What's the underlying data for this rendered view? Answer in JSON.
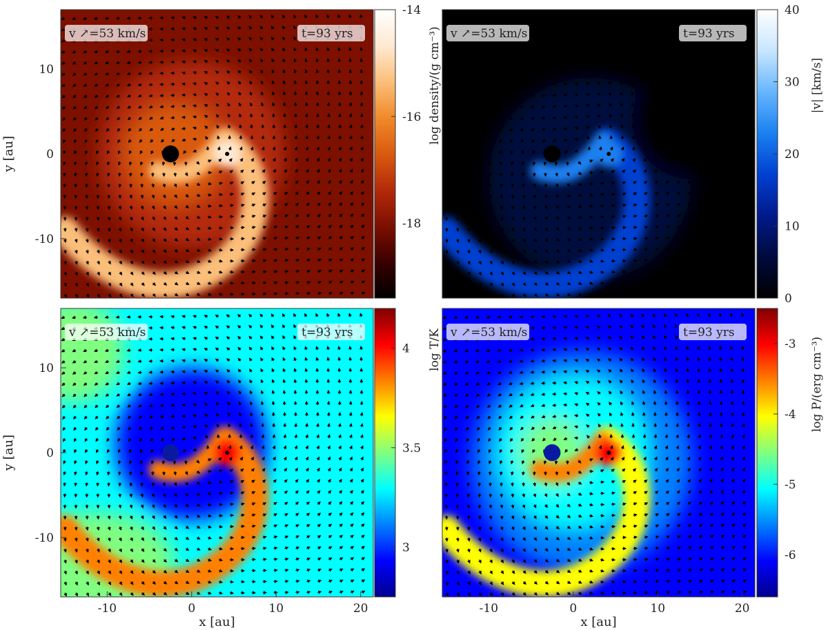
{
  "chart_data": [
    {
      "type": "heatmap",
      "panel": "top-left",
      "quantity": "density",
      "colorbar_label": "log density/(g cm⁻³)",
      "colorbar_range": [
        -19.4,
        -14
      ],
      "colorbar_ticks": [
        -14,
        -16,
        -18
      ],
      "colormap": [
        "#000000",
        "#3a0000",
        "#7d1000",
        "#b42a0a",
        "#d95a10",
        "#f08a2a",
        "#fbbf7a",
        "#ffe9d2",
        "#ffffff"
      ],
      "velocity_legend": "v ↗=53 km/s",
      "time_label": "t=93 yrs",
      "ylabel": "y [au]",
      "y_ticks": [
        10,
        0,
        -10
      ],
      "xlabel": "",
      "x_ticks": []
    },
    {
      "type": "heatmap",
      "panel": "top-right",
      "quantity": "velocity magnitude",
      "colorbar_label": "|v| [km/s]",
      "colorbar_range": [
        0,
        40
      ],
      "colorbar_ticks": [
        40,
        30,
        20,
        10,
        0
      ],
      "colormap": [
        "#000000",
        "#000a3c",
        "#001a8c",
        "#0040d0",
        "#1a80f0",
        "#66b6ff",
        "#c8e6ff",
        "#ffffff"
      ],
      "velocity_legend": "v ↗=53 km/s",
      "time_label": "t=93 yrs",
      "ylabel": "",
      "y_ticks": [],
      "xlabel": "",
      "x_ticks": []
    },
    {
      "type": "heatmap",
      "panel": "bottom-left",
      "quantity": "temperature",
      "colorbar_label": "log T/K",
      "colorbar_range": [
        2.75,
        4.2
      ],
      "colorbar_ticks": [
        4,
        3.5,
        3
      ],
      "colormap": [
        "#00008f",
        "#0000ff",
        "#0080ff",
        "#00ffff",
        "#80ff80",
        "#ffff00",
        "#ff8000",
        "#ff0000",
        "#800000"
      ],
      "velocity_legend": "v ↗=53 km/s",
      "time_label": "t=93 yrs",
      "ylabel": "y [au]",
      "y_ticks": [
        10,
        0,
        -10
      ],
      "xlabel": "x [au]",
      "x_ticks": [
        -10,
        0,
        10,
        20
      ]
    },
    {
      "type": "heatmap",
      "panel": "bottom-right",
      "quantity": "pressure",
      "colorbar_label": "log P/(erg cm⁻³)",
      "colorbar_range": [
        -6.6,
        -2.5
      ],
      "colorbar_ticks": [
        -3,
        -4,
        -5,
        -6
      ],
      "colormap": [
        "#00008f",
        "#0000ff",
        "#0080ff",
        "#00ffff",
        "#80ff80",
        "#ffff00",
        "#ff8000",
        "#ff0000",
        "#800000"
      ],
      "velocity_legend": "v ↗=53 km/s",
      "time_label": "t=93 yrs",
      "ylabel": "",
      "y_ticks": [],
      "xlabel": "x [au]",
      "x_ticks": [
        -10,
        0,
        10,
        20
      ]
    }
  ],
  "domain": {
    "x": [
      -15.5,
      21.5
    ],
    "y": [
      -17,
      17
    ]
  },
  "sink_particles": [
    {
      "name": "star",
      "x": -2.5,
      "y": 0,
      "radius": 1.0
    },
    {
      "name": "companion",
      "x": 4.2,
      "y": 0,
      "radius": 0.25
    }
  ]
}
